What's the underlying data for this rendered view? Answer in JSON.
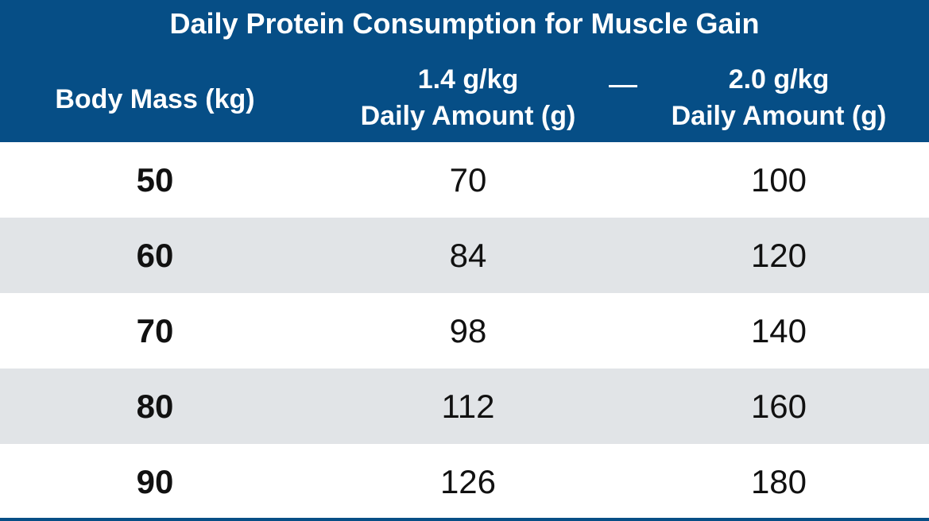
{
  "chart_data": {
    "type": "table",
    "title": "Daily Protein Consumption for Muscle Gain",
    "columns": [
      {
        "label": "Body Mass (kg)"
      },
      {
        "rate": "1.4 g/kg",
        "label": "Daily Amount (g)"
      },
      {
        "rate": "2.0 g/kg",
        "label": "Daily Amount (g)"
      }
    ],
    "separator": "—",
    "rows": [
      {
        "body_mass": "50",
        "low": "70",
        "high": "100"
      },
      {
        "body_mass": "60",
        "low": "84",
        "high": "120"
      },
      {
        "body_mass": "70",
        "low": "98",
        "high": "140"
      },
      {
        "body_mass": "80",
        "low": "112",
        "high": "160"
      },
      {
        "body_mass": "90",
        "low": "126",
        "high": "180"
      }
    ]
  },
  "colors": {
    "header_bg": "#064e86",
    "header_text": "#ffffff",
    "alt_row_bg": "#e1e4e7",
    "body_text": "#111111"
  }
}
